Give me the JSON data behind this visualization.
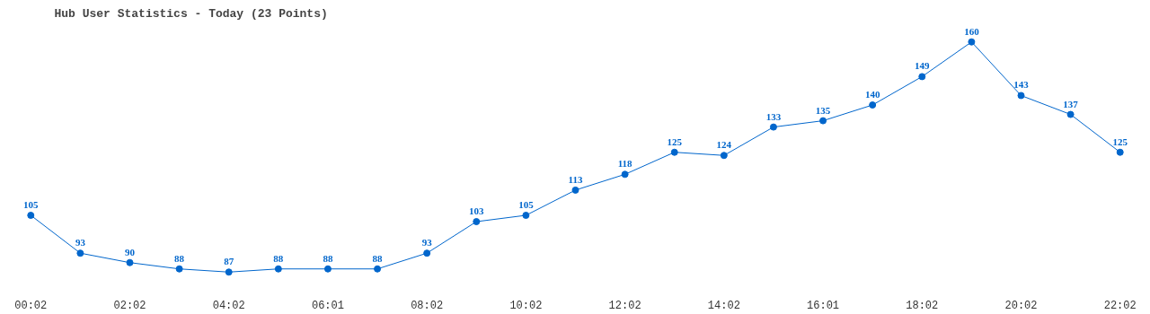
{
  "chart_data": {
    "type": "line",
    "title": "Hub User Statistics - Today (23 Points)",
    "categories": [
      "00:02",
      null,
      "02:02",
      null,
      "04:02",
      null,
      "06:01",
      null,
      "08:02",
      null,
      "10:02",
      null,
      "12:02",
      null,
      "14:02",
      null,
      "16:01",
      null,
      "18:02",
      null,
      "20:02",
      null,
      "22:02"
    ],
    "series": [
      {
        "color": "#0066cc",
        "values": [
          105,
          93,
          90,
          88,
          87,
          88,
          88,
          88,
          93,
          103,
          105,
          113,
          118,
          125,
          124,
          133,
          135,
          140,
          149,
          160,
          143,
          137,
          125
        ]
      }
    ],
    "data_labels": true,
    "marker": "circle",
    "grid": false,
    "tick_labels": "x",
    "line_style": "solid"
  }
}
